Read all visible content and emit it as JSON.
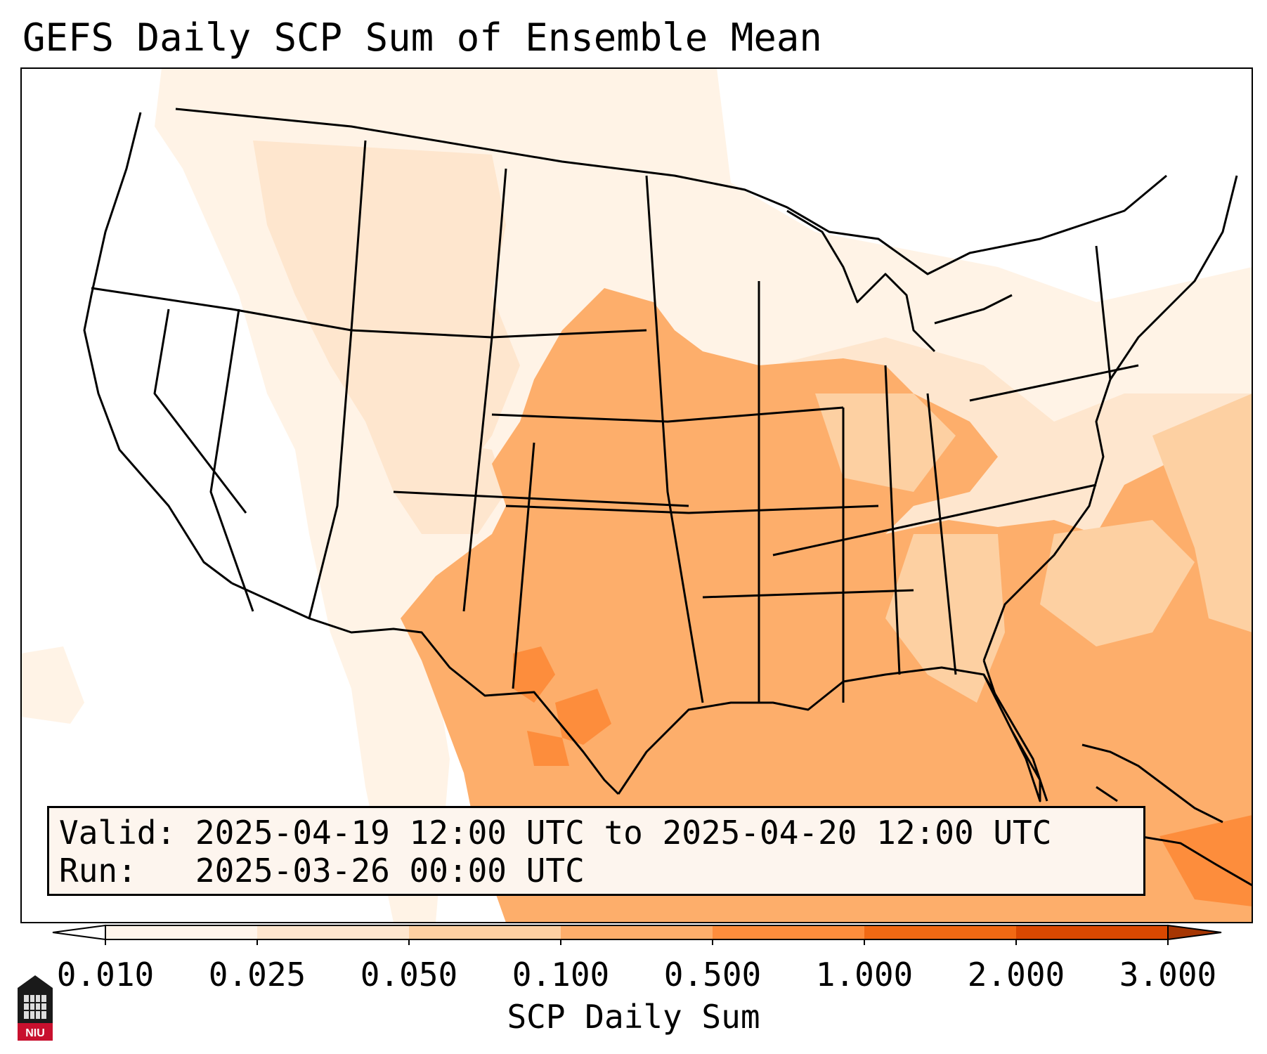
{
  "title": "GEFS Daily SCP Sum of Ensemble Mean",
  "info": {
    "valid_prefix": "Valid:",
    "valid_range": "2025-04-19 12:00 UTC to 2025-04-20 12:00 UTC",
    "run_prefix": "Run:",
    "run_time": "2025-03-26 00:00 UTC"
  },
  "colorbar": {
    "title": "SCP Daily Sum",
    "levels": [
      "0.010",
      "0.025",
      "0.050",
      "0.100",
      "0.500",
      "1.000",
      "2.000",
      "3.000"
    ],
    "colors": [
      "#fff5eb",
      "#fee6ce",
      "#fdd0a2",
      "#fdae6b",
      "#fd8d3c",
      "#f16913",
      "#d94801"
    ],
    "extend": "both"
  },
  "logo": {
    "text": "NIU"
  },
  "map": {
    "frame_color": "#000000",
    "land_background": "#ffffff",
    "boundary_color": "#000000"
  }
}
